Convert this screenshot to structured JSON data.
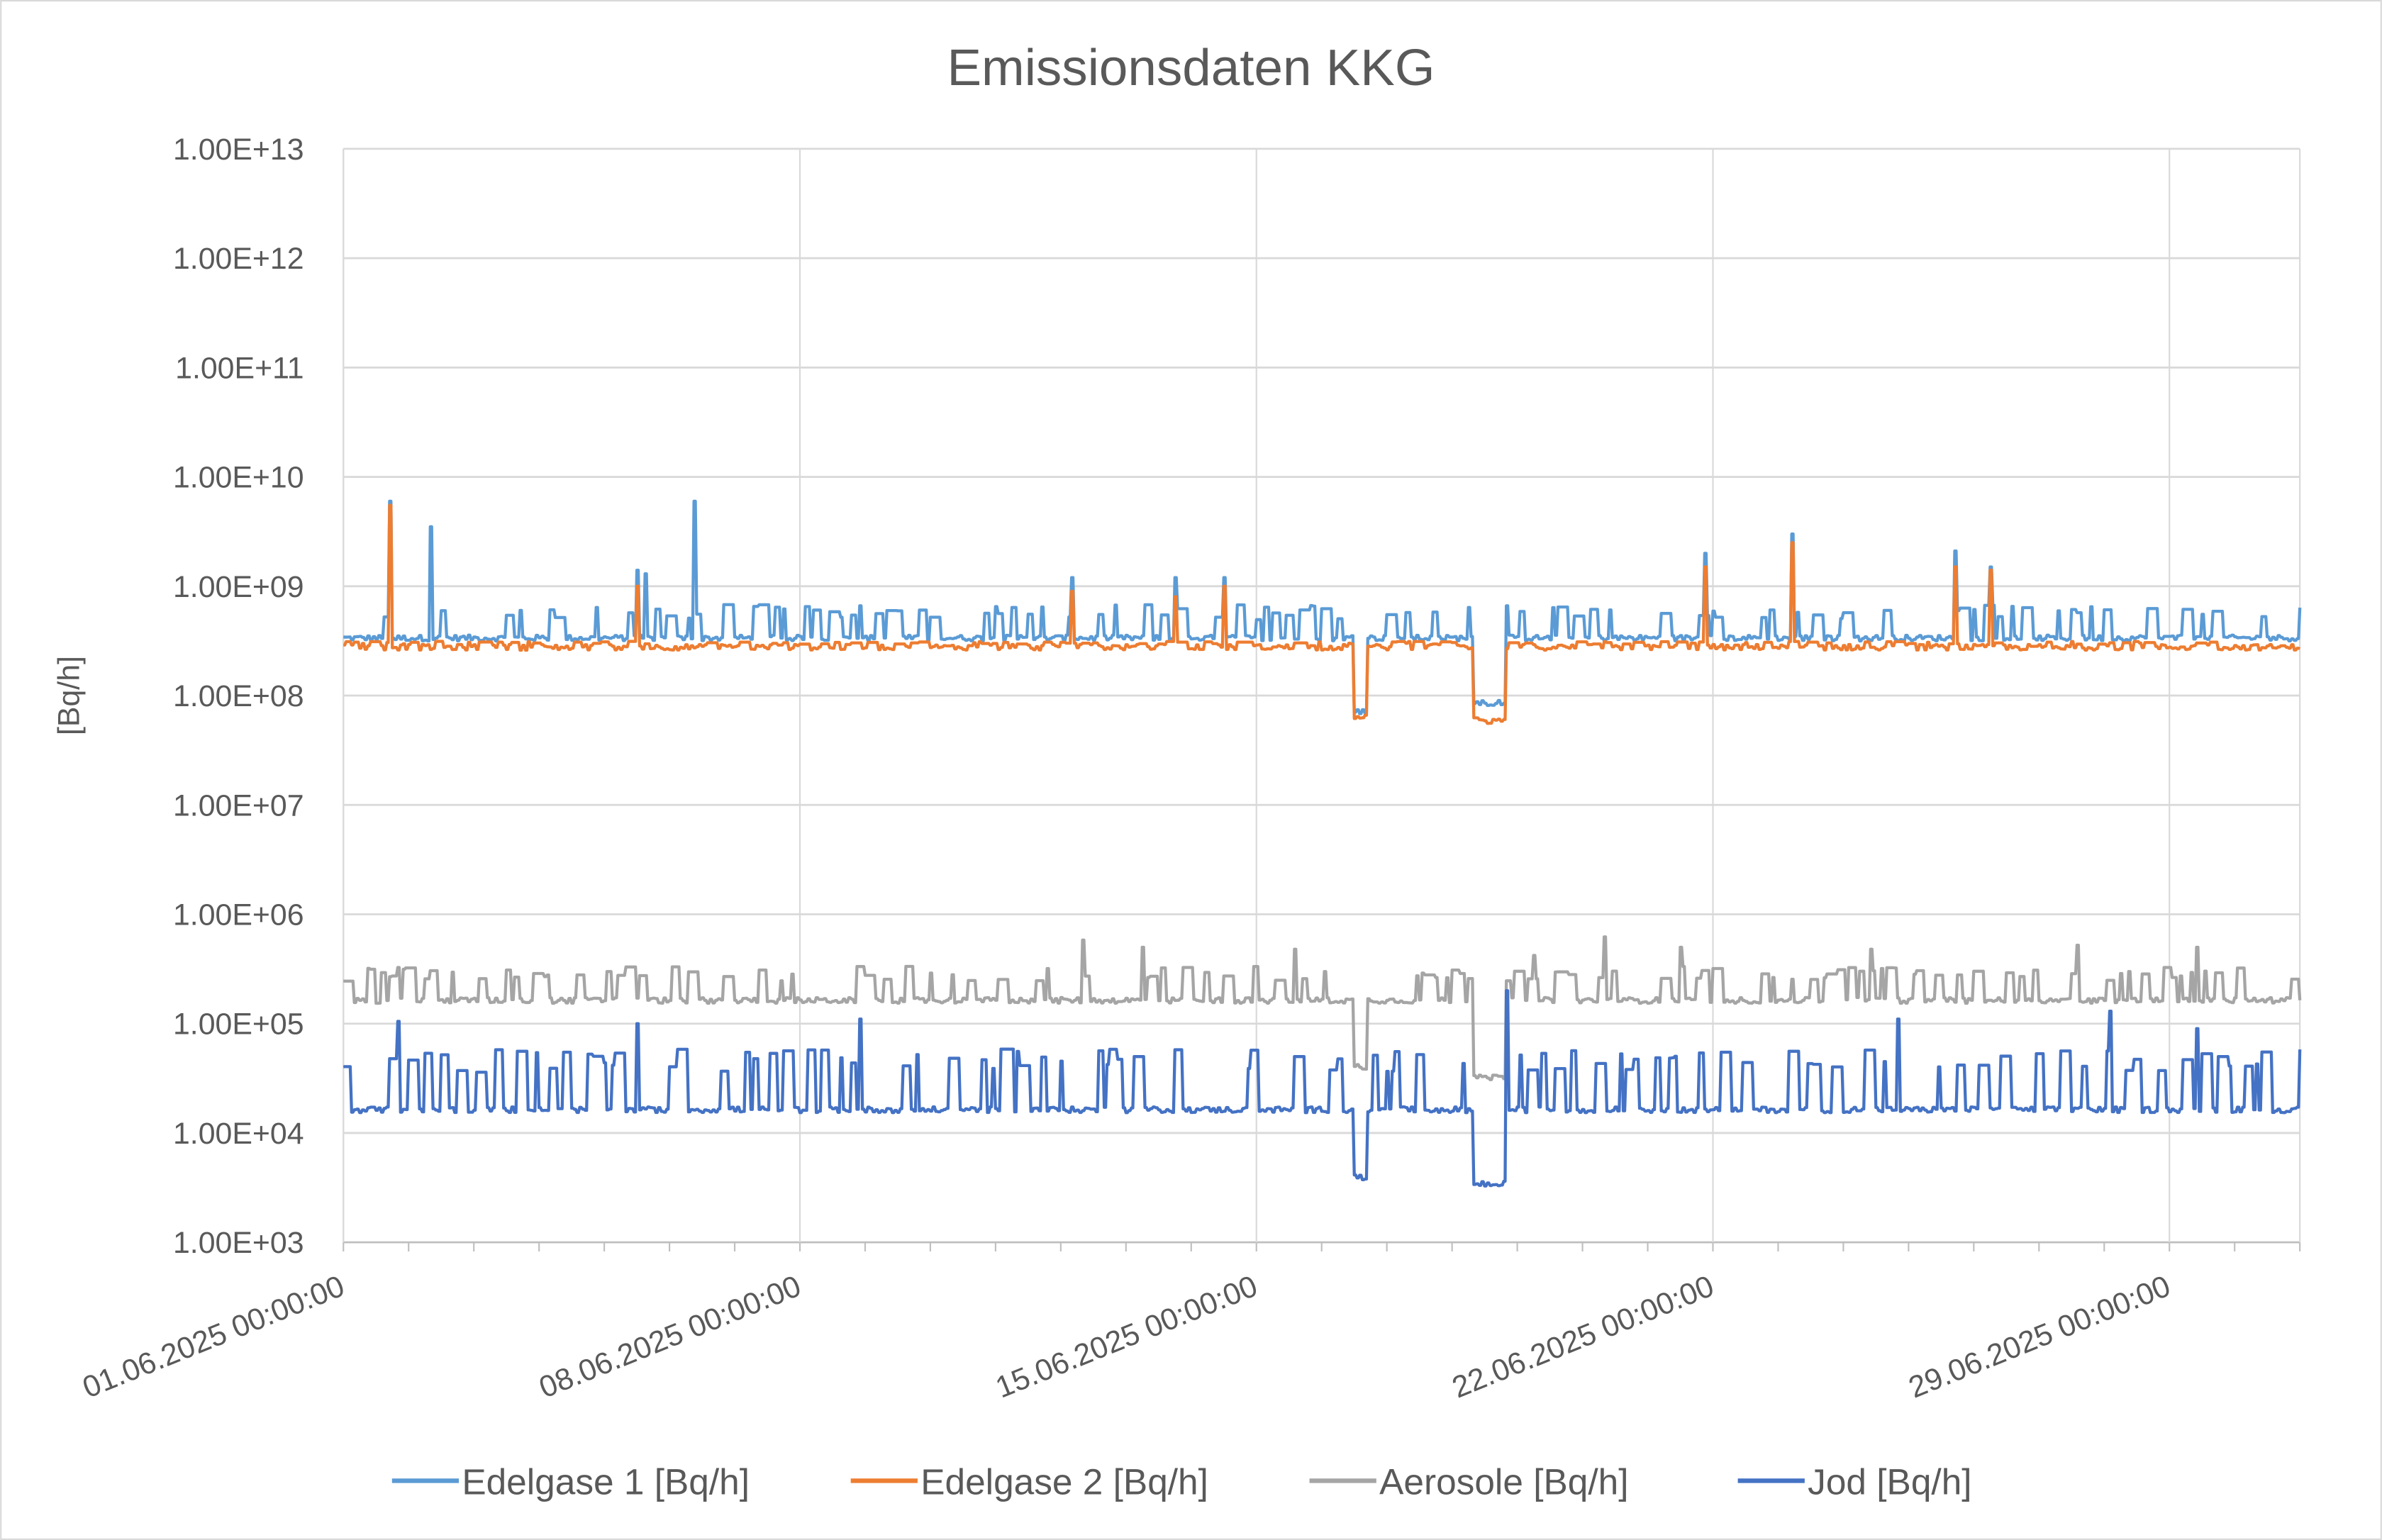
{
  "chart_data": {
    "type": "line",
    "title": "Emissionsdaten KKG",
    "xlabel": "",
    "ylabel": "[Bq/h]",
    "yscale": "log",
    "ylim": [
      1000.0,
      10000000000000.0
    ],
    "yticks": [
      "1.00E+03",
      "1.00E+04",
      "1.00E+05",
      "1.00E+06",
      "1.00E+07",
      "1.00E+08",
      "1.00E+09",
      "1.00E+10",
      "1.00E+11",
      "1.00E+12",
      "1.00E+13"
    ],
    "xlim": [
      "01.06.2025 00:00:00",
      "01.07.2025 00:00:00"
    ],
    "xticks": [
      "01.06.2025 00:00:00",
      "08.06.2025 00:00:00",
      "15.06.2025 00:00:00",
      "22.06.2025 00:00:00",
      "29.06.2025 00:00:00"
    ],
    "x_minor_tick_interval": "1 day",
    "grid": true,
    "legend": "bottom",
    "series": [
      {
        "name": "Edelgase 1 [Bq/h]",
        "color": "#5b9bd5",
        "baseline": 340000000.0,
        "typical_max": 650000000.0,
        "spikes": [
          [
            "01.06.2025 17:00",
            6000000000.0
          ],
          [
            "02.06.2025 08:00",
            3500000000.0
          ],
          [
            "05.06.2025 12:00",
            1400000000.0
          ],
          [
            "05.06.2025 15:00",
            1300000000.0
          ],
          [
            "06.06.2025 09:00",
            6000000000.0
          ],
          [
            "12.06.2025 04:00",
            1200000000.0
          ],
          [
            "13.06.2025 18:00",
            1200000000.0
          ],
          [
            "14.06.2025 12:00",
            1200000000.0
          ],
          [
            "21.06.2025 21:00",
            2000000000.0
          ],
          [
            "23.06.2025 05:00",
            3000000000.0
          ],
          [
            "25.06.2025 17:00",
            2100000000.0
          ],
          [
            "26.06.2025 06:00",
            1500000000.0
          ]
        ],
        "dips": [
          [
            "16.06.2025 12:00",
            "16.06.2025 16:00",
            65000000.0
          ],
          [
            "18.06.2025 08:00",
            "18.06.2025 19:00",
            80000000.0
          ]
        ]
      },
      {
        "name": "Edelgase 2 [Bq/h]",
        "color": "#ed7d31",
        "baseline": 280000000.0,
        "typical_max": 310000000.0,
        "spikes": [
          [
            "01.06.2025 17:00",
            5500000000.0
          ],
          [
            "05.06.2025 12:00",
            1000000000.0
          ],
          [
            "12.06.2025 04:00",
            900000000.0
          ],
          [
            "13.06.2025 18:00",
            800000000.0
          ],
          [
            "14.06.2025 12:00",
            1000000000.0
          ],
          [
            "21.06.2025 21:00",
            1500000000.0
          ],
          [
            "23.06.2025 05:00",
            2500000000.0
          ],
          [
            "25.06.2025 17:00",
            1500000000.0
          ],
          [
            "26.06.2025 06:00",
            1400000000.0
          ]
        ],
        "dips": [
          [
            "16.06.2025 12:00",
            "16.06.2025 16:00",
            60000000.0
          ],
          [
            "18.06.2025 08:00",
            "18.06.2025 19:00",
            55000000.0
          ]
        ]
      },
      {
        "name": "Aerosole [Bq/h]",
        "color": "#a5a5a5",
        "baseline": 165000.0,
        "typical_max": 320000.0,
        "spikes": [
          [
            "12.06.2025 08:00",
            580000.0
          ],
          [
            "13.06.2025 06:00",
            500000.0
          ],
          [
            "15.06.2025 14:00",
            480000.0
          ],
          [
            "19.06.2025 06:00",
            420000.0
          ],
          [
            "20.06.2025 08:00",
            620000.0
          ],
          [
            "21.06.2025 12:00",
            500000.0
          ],
          [
            "24.06.2025 10:00",
            480000.0
          ],
          [
            "27.06.2025 14:00",
            520000.0
          ],
          [
            "29.06.2025 10:00",
            500000.0
          ]
        ],
        "dips": [
          [
            "16.06.2025 12:00",
            "16.06.2025 16:00",
            37000.0
          ],
          [
            "18.06.2025 08:00",
            "18.06.2025 19:00",
            30000.0
          ]
        ]
      },
      {
        "name": "Jod [Bq/h]",
        "color": "#4472c4",
        "baseline": 16500.0,
        "typical_max": 55000.0,
        "spikes": [
          [
            "01.06.2025 20:00",
            105000.0
          ],
          [
            "05.06.2025 12:00",
            100000.0
          ],
          [
            "08.06.2025 22:00",
            110000.0
          ],
          [
            "18.06.2025 20:00",
            200000.0
          ],
          [
            "24.06.2025 20:00",
            110000.0
          ],
          [
            "28.06.2025 02:00",
            130000.0
          ],
          [
            "29.06.2025 10:00",
            90000.0
          ]
        ],
        "dips": [
          [
            "16.06.2025 12:00",
            "16.06.2025 16:00",
            3600.0
          ],
          [
            "18.06.2025 08:00",
            "18.06.2025 19:00",
            3200.0
          ]
        ]
      }
    ]
  }
}
